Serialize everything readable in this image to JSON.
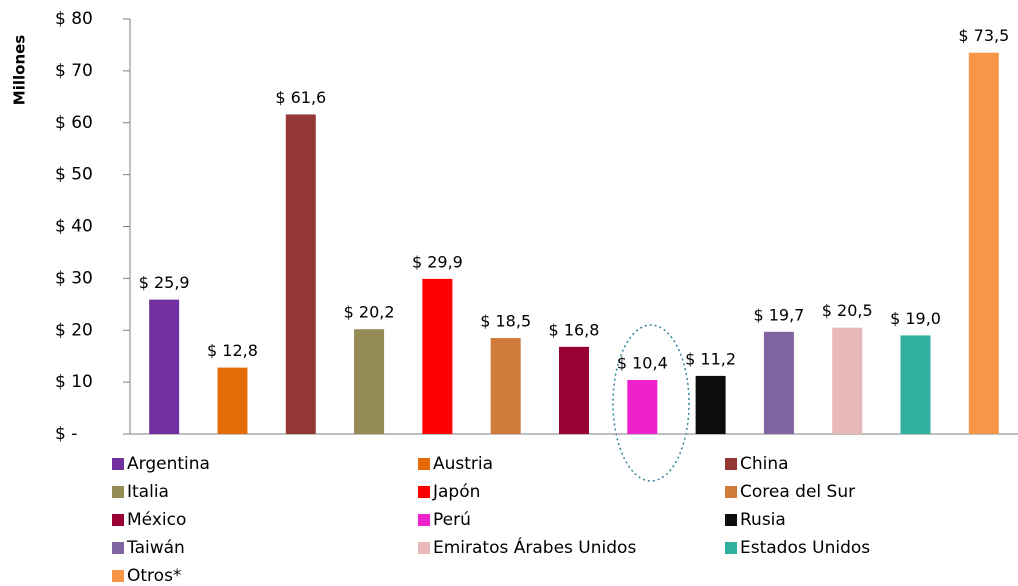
{
  "chart_data": {
    "type": "bar",
    "y_label": "Millones",
    "categories": [
      "Argentina",
      "Austria",
      "China",
      "Italia",
      "Japón",
      "Corea del Sur",
      "México",
      "Perú",
      "Rusia",
      "Taiwán",
      "Emiratos Árabes Unidos",
      "Estados Unidos",
      "Otros*"
    ],
    "values": [
      25.9,
      12.8,
      61.6,
      20.2,
      29.9,
      18.5,
      16.8,
      10.4,
      11.2,
      19.7,
      20.5,
      19.0,
      73.5
    ],
    "value_labels": [
      "$ 25,9",
      "$ 12,8",
      "$ 61,6",
      "$ 20,2",
      "$ 29,9",
      "$ 18,5",
      "$ 16,8",
      "$ 10,4",
      "$ 11,2",
      "$ 19,7",
      "$ 20,5",
      "$ 19,0",
      "$ 73,5"
    ],
    "colors": [
      "#7030a0",
      "#e36c09",
      "#953735",
      "#948a54",
      "#ff0000",
      "#d07a3c",
      "#990033",
      "#ee22cc",
      "#0d0d0d",
      "#8064a2",
      "#e6b9b8",
      "#31b0a0",
      "#f79646"
    ],
    "ylim": [
      0,
      80
    ],
    "yticks": [
      {
        "value": 0,
        "label": "$ -"
      },
      {
        "value": 10,
        "label": "$ 10"
      },
      {
        "value": 20,
        "label": "$ 20"
      },
      {
        "value": 30,
        "label": "$ 30"
      },
      {
        "value": 40,
        "label": "$ 40"
      },
      {
        "value": 50,
        "label": "$ 50"
      },
      {
        "value": 60,
        "label": "$ 60"
      },
      {
        "value": 70,
        "label": "$ 70"
      },
      {
        "value": 80,
        "label": "$ 80"
      }
    ],
    "legend": "bottom"
  }
}
